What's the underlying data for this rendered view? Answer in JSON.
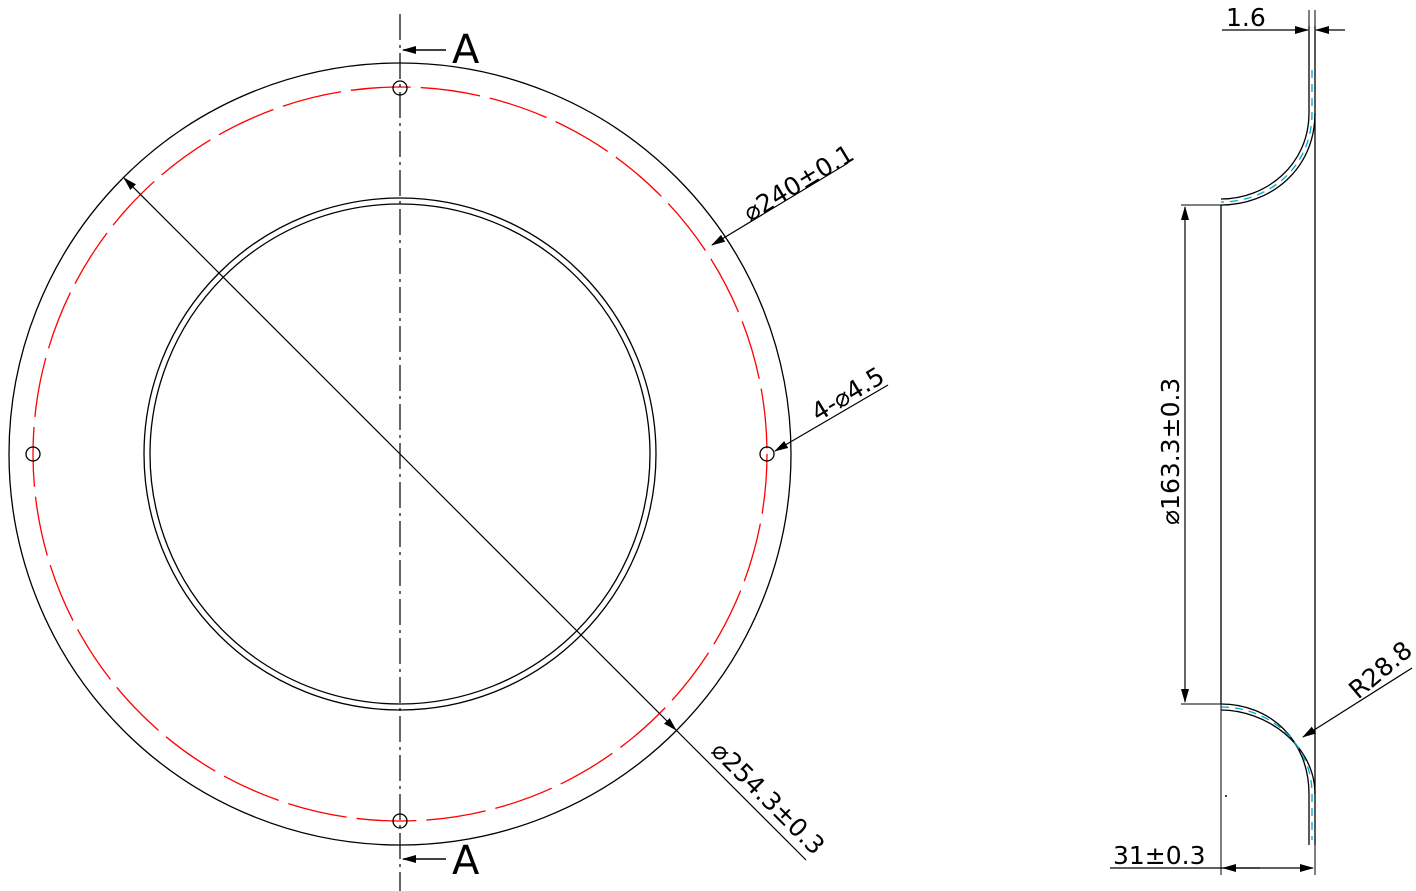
{
  "section_marks": {
    "top": "A",
    "bottom": "A"
  },
  "dimensions": {
    "bolt_circle_dia": "⌀240±0.1",
    "outer_dia": "⌀254.3±0.3",
    "holes": "4-⌀4.5",
    "thickness": "1.6",
    "bore_dia": "⌀163.3±0.3",
    "fillet_radius": "R28.8",
    "depth": "31±0.3"
  },
  "colors": {
    "outline": "#000000",
    "bolt_circle": "#ff0000",
    "section_hatch": "#00aacc"
  }
}
